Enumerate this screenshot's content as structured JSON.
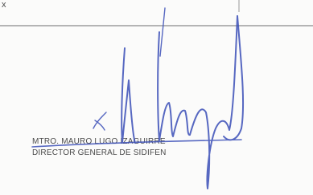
{
  "header": {
    "mark": "x"
  },
  "signature": {
    "name": "MTRO. MAURO LUGO IZAGUIRRE",
    "title": "DIRECTOR GENERAL DE SIDIFEN"
  }
}
